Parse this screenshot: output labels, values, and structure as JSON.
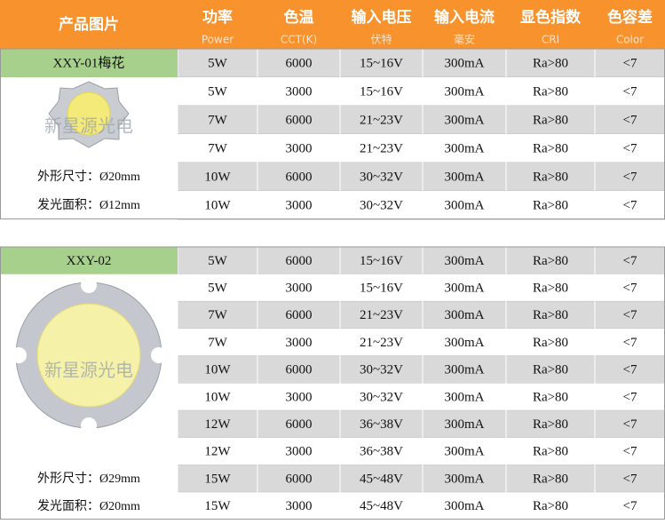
{
  "header": {
    "columns": [
      {
        "title": "产品图片"
      },
      {
        "title": "功率",
        "subtitle": "Power"
      },
      {
        "title": "色温",
        "subtitle": "CCT(K)"
      },
      {
        "title": "输入电压",
        "subtitle": "伏特"
      },
      {
        "title": "输入电流",
        "subtitle": "毫安"
      },
      {
        "title": "显色指数",
        "subtitle": "CRI"
      },
      {
        "title": "色容差",
        "subtitle": "Color"
      }
    ]
  },
  "tables": [
    {
      "model": "XXY-01梅花",
      "watermark": "新星源光电",
      "specs": [
        "外形尺寸：Ø20mm",
        "发光面积：Ø12mm"
      ],
      "rows": [
        [
          "5W",
          "6000",
          "15~16V",
          "300mA",
          "Ra>80",
          "<7"
        ],
        [
          "5W",
          "3000",
          "15~16V",
          "300mA",
          "Ra>80",
          "<7"
        ],
        [
          "7W",
          "6000",
          "21~23V",
          "300mA",
          "Ra>80",
          "<7"
        ],
        [
          "7W",
          "3000",
          "21~23V",
          "300mA",
          "Ra>80",
          "<7"
        ],
        [
          "10W",
          "6000",
          "30~32V",
          "300mA",
          "Ra>80",
          "<7"
        ],
        [
          "10W",
          "3000",
          "30~32V",
          "300mA",
          "Ra>80",
          "<7"
        ]
      ]
    },
    {
      "model": "XXY-02",
      "watermark": "新星源光电",
      "specs": [
        "外形尺寸：Ø29mm",
        "发光面积：Ø20mm"
      ],
      "rows": [
        [
          "5W",
          "6000",
          "15~16V",
          "300mA",
          "Ra>80",
          "<7"
        ],
        [
          "5W",
          "3000",
          "15~16V",
          "300mA",
          "Ra>80",
          "<7"
        ],
        [
          "7W",
          "6000",
          "21~23V",
          "300mA",
          "Ra>80",
          "<7"
        ],
        [
          "7W",
          "3000",
          "21~23V",
          "300mA",
          "Ra>80",
          "<7"
        ],
        [
          "10W",
          "6000",
          "30~32V",
          "300mA",
          "Ra>80",
          "<7"
        ],
        [
          "10W",
          "3000",
          "30~32V",
          "300mA",
          "Ra>80",
          "<7"
        ],
        [
          "12W",
          "6000",
          "36~38V",
          "300mA",
          "Ra>80",
          "<7"
        ],
        [
          "12W",
          "3000",
          "36~38V",
          "300mA",
          "Ra>80",
          "<7"
        ],
        [
          "15W",
          "6000",
          "45~48V",
          "300mA",
          "Ra>80",
          "<7"
        ],
        [
          "15W",
          "3000",
          "45~48V",
          "300mA",
          "Ra>80",
          "<7"
        ]
      ]
    }
  ]
}
